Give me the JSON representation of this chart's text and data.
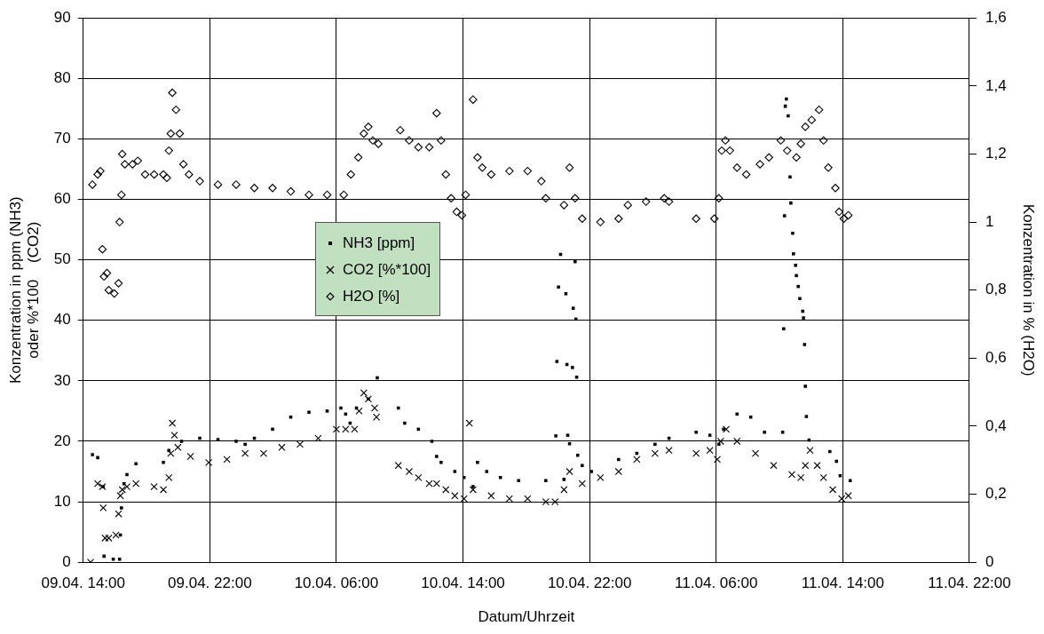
{
  "chart_data": {
    "type": "scatter",
    "xlabel": "Datum/Uhrzeit",
    "ylabel": "Konzentration in ppm (NH3)\noder %*100    (CO2)",
    "y2label": "Konzentration in % (H2O)",
    "xlim": [
      "--04-09T14:00",
      "--04-11T22:00"
    ],
    "xticks": [
      {
        "value": "--04-09T14:00",
        "label": "09.04. 14:00"
      },
      {
        "value": "--04-09T22:00",
        "label": "09.04. 22:00"
      },
      {
        "value": "--04-10T06:00",
        "label": "10.04. 06:00"
      },
      {
        "value": "--04-10T14:00",
        "label": "10.04. 14:00"
      },
      {
        "value": "--04-10T22:00",
        "label": "10.04. 22:00"
      },
      {
        "value": "--04-11T06:00",
        "label": "11.04. 06:00"
      },
      {
        "value": "--04-11T14:00",
        "label": "11.04. 14:00"
      },
      {
        "value": "--04-11T22:00",
        "label": "11.04. 22:00"
      }
    ],
    "ylim": [
      0,
      90
    ],
    "yticks": [
      0,
      10,
      20,
      30,
      40,
      50,
      60,
      70,
      80,
      90
    ],
    "y2lim": [
      0,
      1.6
    ],
    "y2ticks": [
      0,
      {
        "value": 0.2,
        "label": "0,2"
      },
      {
        "value": 0.4,
        "label": "0,4"
      },
      {
        "value": 0.6,
        "label": "0,6"
      },
      {
        "value": 0.8,
        "label": "0,8"
      },
      1,
      {
        "value": 1.2,
        "label": "1,2"
      },
      {
        "value": 1.4,
        "label": "1,4"
      },
      {
        "value": 1.6,
        "label": "1,6"
      }
    ],
    "grid": true,
    "legend": "center",
    "series": [
      {
        "name": "NH3 [ppm]",
        "color": "#000000",
        "marker": "square",
        "x": [
          "--04-09T14:35",
          "--04-09T14:55",
          "--04-09T15:16",
          "--04-09T15:19",
          "--04-09T15:54",
          "--04-09T16:18",
          "--04-09T16:21",
          "--04-09T16:25",
          "--04-09T16:35",
          "--04-09T16:46",
          "--04-09T17:20",
          "--04-09T19:04",
          "--04-09T19:25",
          "--04-09T20:13",
          "--04-09T21:22",
          "--04-09T22:31",
          "--04-09T23:40",
          "--04-10T00:14",
          "--04-10T00:49",
          "--04-10T01:58",
          "--04-10T03:07",
          "--04-10T04:16",
          "--04-10T05:25",
          "--04-10T06:17",
          "--04-10T06:35",
          "--04-10T06:52",
          "--04-10T07:16",
          "--04-10T08:01",
          "--04-10T08:35",
          "--04-10T09:55",
          "--04-10T10:19",
          "--04-10T11:11",
          "--04-10T12:02",
          "--04-10T12:20",
          "--04-10T12:37",
          "--04-10T13:29",
          "--04-10T14:04",
          "--04-10T14:38",
          "--04-10T14:55",
          "--04-10T15:30",
          "--04-10T16:22",
          "--04-10T17:31",
          "--04-10T19:14",
          "--04-10T20:23",
          "--04-10T19:52",
          "--04-10T19:56",
          "--04-10T20:10",
          "--04-10T20:02",
          "--04-10T20:30",
          "--04-10T20:34",
          "--04-10T20:37",
          "--04-10T20:44",
          "--04-10T20:55",
          "--04-10T20:58",
          "--04-10T21:05",
          "--04-10T21:08",
          "--04-10T21:11",
          "--04-10T21:15",
          "--04-10T21:32",
          "--04-10T22:07",
          "--04-10T23:50",
          "--04-11T00:59",
          "--04-11T02:08",
          "--04-11T03:01",
          "--04-11T04:44",
          "--04-11T05:36",
          "--04-11T06:10",
          "--04-11T06:28",
          "--04-11T07:19",
          "--04-11T08:11",
          "--04-11T09:03",
          "--04-11T10:12",
          "--04-11T10:16",
          "--04-11T10:19",
          "--04-11T10:22",
          "--04-11T10:26",
          "--04-11T10:33",
          "--04-11T10:40",
          "--04-11T10:43",
          "--04-11T10:50",
          "--04-11T10:53",
          "--04-11T11:01",
          "--04-11T11:04",
          "--04-11T11:11",
          "--04-11T11:17",
          "--04-11T11:28",
          "--04-11T11:31",
          "--04-11T11:35",
          "--04-11T11:38",
          "--04-11T11:42",
          "--04-11T11:52",
          "--04-11T13:11",
          "--04-11T13:36",
          "--04-11T13:50",
          "--04-11T14:28"
        ],
        "values": [
          17.8,
          17.3,
          12.5,
          1,
          0.5,
          0.5,
          4.5,
          9,
          13,
          14.5,
          16.3,
          16.5,
          18.5,
          20,
          20.5,
          20.3,
          20,
          19.5,
          20.5,
          22,
          24,
          24.8,
          25,
          25.5,
          24.5,
          23,
          25.5,
          27,
          30.5,
          25.5,
          23,
          22,
          20,
          17.5,
          16.5,
          15,
          14,
          12.5,
          16.5,
          15,
          14,
          13.5,
          13.5,
          13.7,
          20.9,
          33.2,
          50.9,
          45.5,
          44.4,
          32.7,
          21,
          19.6,
          32.2,
          42,
          49.7,
          40.2,
          30.6,
          17.7,
          16,
          15,
          17,
          18,
          19.5,
          20.5,
          21.5,
          21,
          19.5,
          22,
          24.5,
          24,
          21.5,
          21.5,
          38.6,
          57.3,
          75.4,
          76.6,
          73.8,
          63.7,
          59.4,
          54.4,
          51,
          49.1,
          47.4,
          45.6,
          43.6,
          41.5,
          40.4,
          36,
          29.1,
          24.1,
          20.2,
          18.3,
          16.7,
          14.3,
          13.5
        ]
      },
      {
        "name": "CO2 [%*100]",
        "color": "#000000",
        "marker": "cross",
        "x": [
          "--04-09T14:28",
          "--04-09T14:55",
          "--04-09T15:13",
          "--04-09T15:16",
          "--04-09T15:23",
          "--04-09T15:37",
          "--04-09T16:04",
          "--04-09T16:14",
          "--04-09T16:21",
          "--04-09T16:28",
          "--04-09T16:46",
          "--04-09T17:20",
          "--04-09T18:29",
          "--04-09T19:04",
          "--04-09T19:25",
          "--04-09T19:32",
          "--04-09T19:38",
          "--04-09T19:46",
          "--04-09T19:59",
          "--04-09T20:47",
          "--04-09T21:56",
          "--04-09T23:05",
          "--04-10T00:14",
          "--04-10T01:24",
          "--04-10T02:33",
          "--04-10T03:42",
          "--04-10T04:51",
          "--04-10T06:00",
          "--04-10T06:35",
          "--04-10T07:09",
          "--04-10T07:26",
          "--04-10T07:44",
          "--04-10T08:01",
          "--04-10T08:25",
          "--04-10T08:32",
          "--04-10T09:55",
          "--04-10T10:36",
          "--04-10T11:11",
          "--04-10T11:52",
          "--04-10T12:20",
          "--04-10T12:55",
          "--04-10T13:29",
          "--04-10T14:04",
          "--04-10T14:24",
          "--04-10T14:38",
          "--04-10T15:47",
          "--04-10T16:56",
          "--04-10T18:05",
          "--04-10T19:14",
          "--04-10T19:49",
          "--04-10T20:23",
          "--04-10T20:44",
          "--04-10T21:32",
          "--04-10T22:41",
          "--04-10T23:50",
          "--04-11T00:59",
          "--04-11T02:08",
          "--04-11T03:01",
          "--04-11T04:44",
          "--04-11T05:36",
          "--04-11T06:04",
          "--04-11T06:17",
          "--04-11T06:38",
          "--04-11T07:19",
          "--04-11T08:29",
          "--04-11T09:38",
          "--04-11T10:47",
          "--04-11T11:21",
          "--04-11T11:38",
          "--04-11T11:56",
          "--04-11T12:23",
          "--04-11T12:47",
          "--04-11T13:22",
          "--04-11T13:56",
          "--04-11T14:21"
        ],
        "values": [
          0,
          13,
          12.5,
          9,
          4,
          4,
          4.5,
          8,
          11,
          12,
          12.5,
          13,
          12.5,
          12,
          14,
          18,
          23,
          21,
          19,
          17.5,
          16.5,
          17,
          18,
          18,
          19,
          19.5,
          20.5,
          22,
          22,
          22,
          25,
          28,
          27,
          25.5,
          24,
          16,
          15,
          14,
          13,
          13,
          12,
          11,
          10.5,
          23,
          12,
          11,
          10.5,
          10.5,
          10,
          10,
          12,
          15,
          13,
          14,
          15,
          17,
          18,
          18.5,
          18,
          18.5,
          17,
          20,
          22,
          20,
          18,
          16,
          14.5,
          14,
          16,
          18.5,
          16,
          14,
          12,
          10.5,
          11
        ]
      },
      {
        "name": "H2O [%]",
        "color": "#000000",
        "marker": "diamond",
        "axis": "y2",
        "x": [
          "--04-09T14:35",
          "--04-09T14:55",
          "--04-09T15:05",
          "--04-09T15:13",
          "--04-09T15:19",
          "--04-09T15:30",
          "--04-09T15:37",
          "--04-09T15:58",
          "--04-09T16:14",
          "--04-09T16:18",
          "--04-09T16:25",
          "--04-09T16:28",
          "--04-09T16:38",
          "--04-09T17:07",
          "--04-09T17:27",
          "--04-09T17:55",
          "--04-09T18:29",
          "--04-09T19:04",
          "--04-09T19:17",
          "--04-09T19:25",
          "--04-09T19:32",
          "--04-09T19:38",
          "--04-09T19:52",
          "--04-09T20:06",
          "--04-09T20:20",
          "--04-09T20:41",
          "--04-09T21:22",
          "--04-09T22:31",
          "--04-09T23:40",
          "--04-10T00:49",
          "--04-10T01:58",
          "--04-10T03:07",
          "--04-10T04:16",
          "--04-10T05:25",
          "--04-10T06:28",
          "--04-10T06:55",
          "--04-10T07:23",
          "--04-10T07:44",
          "--04-10T08:01",
          "--04-10T08:18",
          "--04-10T08:39",
          "--04-10T10:02",
          "--04-10T10:36",
          "--04-10T11:11",
          "--04-10T11:52",
          "--04-10T12:20",
          "--04-10T12:37",
          "--04-10T12:55",
          "--04-10T13:15",
          "--04-10T13:36",
          "--04-10T13:56",
          "--04-10T14:10",
          "--04-10T14:38",
          "--04-10T14:55",
          "--04-10T15:13",
          "--04-10T15:47",
          "--04-10T16:56",
          "--04-10T18:05",
          "--04-10T18:57",
          "--04-10T19:14",
          "--04-10T20:23",
          "--04-10T20:44",
          "--04-10T21:05",
          "--04-10T21:32",
          "--04-10T22:41",
          "--04-10T23:50",
          "--04-11T00:25",
          "--04-11T01:34",
          "--04-11T02:43",
          "--04-11T03:01",
          "--04-11T04:44",
          "--04-11T05:53",
          "--04-11T06:10",
          "--04-11T06:21",
          "--04-11T06:35",
          "--04-11T06:52",
          "--04-11T07:19",
          "--04-11T07:54",
          "--04-11T08:46",
          "--04-11T09:20",
          "--04-11T10:05",
          "--04-11T10:29",
          "--04-11T11:04",
          "--04-11T11:21",
          "--04-11T11:38",
          "--04-11T12:02",
          "--04-11T12:30",
          "--04-11T12:47",
          "--04-11T13:05",
          "--04-11T13:32",
          "--04-11T13:46",
          "--04-11T14:04",
          "--04-11T14:21"
        ],
        "values": [
          1.11,
          1.14,
          1.15,
          0.92,
          0.84,
          0.85,
          0.8,
          0.79,
          0.82,
          1,
          1.08,
          1.2,
          1.17,
          1.17,
          1.18,
          1.14,
          1.14,
          1.14,
          1.13,
          1.21,
          1.26,
          1.38,
          1.33,
          1.26,
          1.17,
          1.14,
          1.12,
          1.11,
          1.11,
          1.1,
          1.1,
          1.09,
          1.08,
          1.08,
          1.08,
          1.14,
          1.19,
          1.26,
          1.28,
          1.24,
          1.23,
          1.27,
          1.24,
          1.22,
          1.22,
          1.32,
          1.24,
          1.14,
          1.07,
          1.03,
          1.02,
          1.08,
          1.36,
          1.19,
          1.16,
          1.14,
          1.15,
          1.15,
          1.12,
          1.07,
          1.05,
          1.16,
          1.07,
          1.01,
          1,
          1.01,
          1.05,
          1.06,
          1.07,
          1.06,
          1.01,
          1.01,
          1.07,
          1.21,
          1.24,
          1.21,
          1.16,
          1.14,
          1.17,
          1.19,
          1.24,
          1.21,
          1.19,
          1.23,
          1.28,
          1.3,
          1.33,
          1.24,
          1.16,
          1.1,
          1.03,
          1.01,
          1.02
        ]
      }
    ]
  }
}
